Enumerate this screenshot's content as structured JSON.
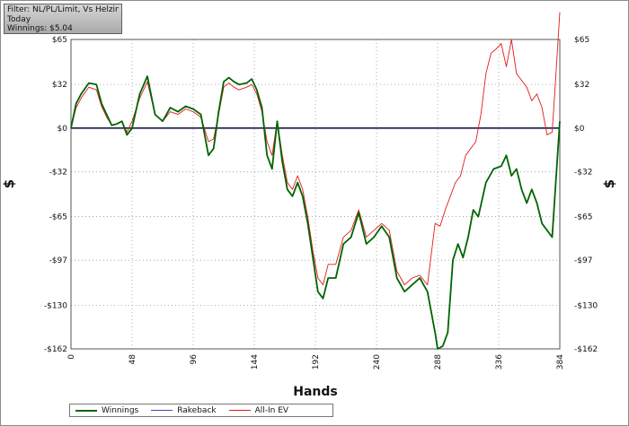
{
  "filter": {
    "line1": "Filter: NL/PL/Limit, Vs Helzin",
    "line2": "Today",
    "line3": "Winnings: $5.04"
  },
  "legend": {
    "items": [
      {
        "label": "Winnings",
        "color": "#006400"
      },
      {
        "label": "Rakeback",
        "color": "#4a4aa8"
      },
      {
        "label": "All-In EV",
        "color": "#e31a1a"
      }
    ]
  },
  "chart_data": {
    "type": "line",
    "xlabel": "Hands",
    "ylabel": "$",
    "xlim": [
      0,
      384
    ],
    "ylim": [
      -162,
      65
    ],
    "x_ticks": [
      0,
      48,
      96,
      144,
      192,
      240,
      288,
      336,
      384
    ],
    "y_ticks": [
      65,
      32,
      0,
      -32,
      -65,
      -97,
      -130,
      -162
    ],
    "y_tick_labels": [
      "$65",
      "$32",
      "$0",
      "-$32",
      "-$65",
      "-$97",
      "-$130",
      "-$162"
    ],
    "grid": true,
    "legend_position": "bottom",
    "series": [
      {
        "name": "Winnings",
        "color": "#006400",
        "x": [
          0,
          4,
          8,
          14,
          20,
          24,
          28,
          32,
          36,
          40,
          44,
          48,
          54,
          60,
          66,
          72,
          78,
          84,
          90,
          96,
          102,
          108,
          112,
          116,
          120,
          124,
          128,
          132,
          138,
          142,
          146,
          150,
          154,
          158,
          162,
          166,
          170,
          174,
          178,
          182,
          186,
          190,
          194,
          198,
          202,
          208,
          214,
          220,
          226,
          232,
          238,
          244,
          250,
          256,
          262,
          268,
          274,
          280,
          286,
          288,
          292,
          296,
          300,
          304,
          308,
          312,
          316,
          320,
          326,
          332,
          338,
          342,
          346,
          350,
          354,
          358,
          362,
          366,
          370,
          374,
          378,
          384
        ],
        "y": [
          0,
          18,
          25,
          33,
          32,
          18,
          10,
          2,
          3,
          5,
          -5,
          0,
          25,
          38,
          10,
          5,
          15,
          12,
          16,
          14,
          10,
          -20,
          -15,
          12,
          34,
          37,
          34,
          32,
          33,
          36,
          28,
          15,
          -20,
          -30,
          5,
          -25,
          -45,
          -50,
          -40,
          -50,
          -70,
          -95,
          -120,
          -125,
          -110,
          -110,
          -85,
          -80,
          -62,
          -85,
          -80,
          -72,
          -80,
          -110,
          -120,
          -115,
          -110,
          -120,
          -150,
          -162,
          -160,
          -150,
          -97,
          -85,
          -95,
          -80,
          -60,
          -65,
          -40,
          -30,
          -28,
          -20,
          -35,
          -30,
          -45,
          -55,
          -45,
          -55,
          -70,
          -75,
          -80,
          5
        ]
      },
      {
        "name": "All-In EV",
        "color": "#e31a1a",
        "x": [
          0,
          4,
          8,
          14,
          20,
          24,
          28,
          32,
          36,
          40,
          44,
          48,
          54,
          60,
          66,
          72,
          78,
          84,
          90,
          96,
          102,
          108,
          112,
          116,
          120,
          124,
          128,
          132,
          138,
          142,
          146,
          150,
          154,
          158,
          162,
          166,
          170,
          174,
          178,
          182,
          186,
          190,
          194,
          198,
          202,
          208,
          214,
          220,
          226,
          232,
          238,
          244,
          250,
          256,
          262,
          268,
          274,
          280,
          286,
          290,
          294,
          298,
          302,
          306,
          310,
          314,
          318,
          322,
          326,
          330,
          334,
          338,
          342,
          346,
          350,
          354,
          358,
          362,
          366,
          370,
          374,
          378,
          380,
          384
        ],
        "y": [
          0,
          15,
          22,
          30,
          28,
          16,
          8,
          2,
          3,
          5,
          -3,
          5,
          22,
          34,
          10,
          5,
          12,
          10,
          14,
          12,
          8,
          -10,
          -8,
          10,
          30,
          33,
          30,
          28,
          30,
          32,
          25,
          12,
          -10,
          -20,
          5,
          -20,
          -40,
          -45,
          -35,
          -45,
          -65,
          -90,
          -110,
          -115,
          -100,
          -100,
          -80,
          -75,
          -60,
          -80,
          -75,
          -70,
          -75,
          -105,
          -115,
          -110,
          -108,
          -115,
          -70,
          -72,
          -60,
          -50,
          -40,
          -35,
          -20,
          -15,
          -10,
          10,
          40,
          55,
          58,
          62,
          45,
          65,
          40,
          35,
          30,
          20,
          25,
          15,
          -5,
          -3,
          25,
          85
        ]
      }
    ]
  }
}
